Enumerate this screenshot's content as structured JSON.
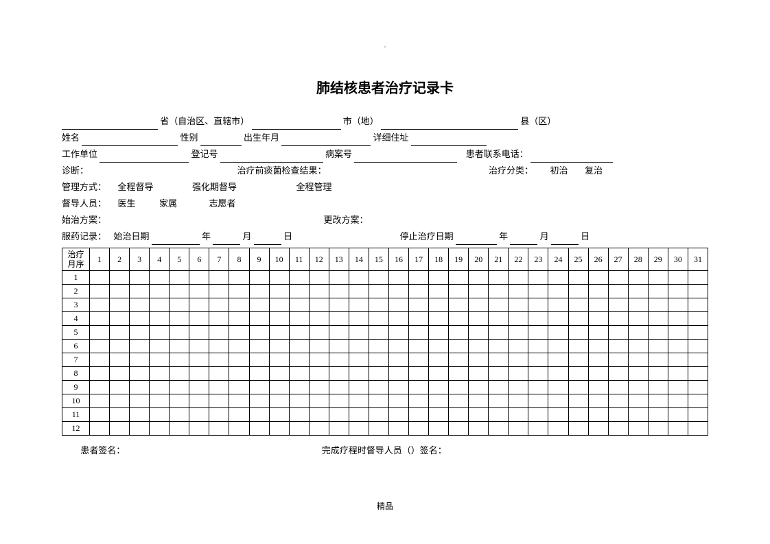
{
  "topDot": ".",
  "title": "肺结核患者治疗记录卡",
  "line1": {
    "region_label": "省（自治区、直辖市）",
    "city_label": "市（地）",
    "county_label": "县（区）"
  },
  "line2": {
    "name_label": "姓名",
    "gender_label": "性别",
    "birth_label": "出生年月",
    "address_label": "详细住址"
  },
  "line3": {
    "workplace_label": "工作单位",
    "regno_label": "登记号",
    "caseno_label": "病案号",
    "phone_label": "患者联系电话："
  },
  "line4": {
    "diagnosis_label": "诊断：",
    "sputum_label": "治疗前痰菌检查结果：",
    "category_label": "治疗分类：",
    "opt1": "初治",
    "opt2": "复治"
  },
  "line5": {
    "mgmt_label": "管理方式：",
    "opt1": "全程督导",
    "opt2": "强化期督导",
    "opt3": "全程管理"
  },
  "line6": {
    "supervisor_label": "督导人员：",
    "opt1": "医生",
    "opt2": "家属",
    "opt3": "志愿者"
  },
  "line7": {
    "start_plan_label": "始治方案：",
    "change_plan_label": "更改方案："
  },
  "line8": {
    "record_label": "服药记录：",
    "start_date_label": "始治日期",
    "year": "年",
    "month": "月",
    "day": "日",
    "stop_date_label": "停止治疗日期"
  },
  "table": {
    "header_first": "治疗\n月序",
    "days": [
      "1",
      "2",
      "3",
      "4",
      "5",
      "6",
      "7",
      "8",
      "9",
      "10",
      "11",
      "12",
      "13",
      "14",
      "15",
      "16",
      "17",
      "18",
      "19",
      "20",
      "21",
      "22",
      "23",
      "24",
      "25",
      "26",
      "27",
      "28",
      "29",
      "30",
      "31"
    ],
    "months": [
      "1",
      "2",
      "3",
      "4",
      "5",
      "6",
      "7",
      "8",
      "9",
      "10",
      "11",
      "12"
    ]
  },
  "sign": {
    "patient_label": "患者签名：",
    "supervisor_label": "完成疗程时督导人员（）签名："
  },
  "footer": "精品"
}
